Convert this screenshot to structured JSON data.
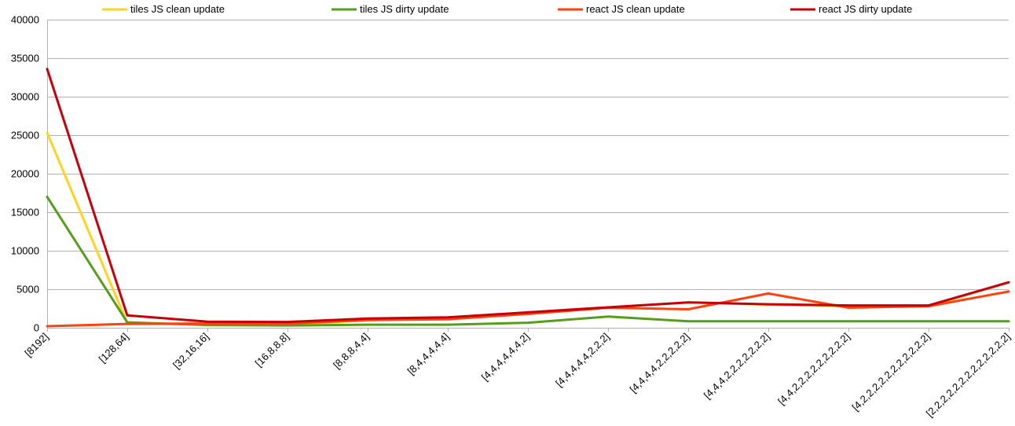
{
  "chart_data": {
    "type": "line",
    "categories": [
      "[8192]",
      "[128,64]",
      "[32,16,16]",
      "[16,8,8,8]",
      "[8,8,8,4,4]",
      "[8,4,4,4,4,4]",
      "[4,4,4,4,4,4,2]",
      "[4,4,4,4,4,2,2,2]",
      "[4,4,4,4,2,2,2,2,2]",
      "[4,4,4,2,2,2,2,2,2,2]",
      "[4,4,2,2,2,2,2,2,2,2,2]",
      "[4,2,2,2,2,2,2,2,2,2,2,2]",
      "[2,2,2,2,2,2,2,2,2,2,2,2,2]"
    ],
    "series": [
      {
        "name": "tiles JS clean update",
        "color": "#ffd320",
        "values": [
          25300,
          600,
          400,
          350,
          1000,
          1200,
          1800,
          2600,
          3300,
          3000,
          2800,
          2800,
          5900
        ]
      },
      {
        "name": "tiles JS dirty update",
        "color": "#579d1c",
        "values": [
          17000,
          700,
          350,
          300,
          400,
          400,
          650,
          1450,
          850,
          850,
          850,
          850,
          850
        ]
      },
      {
        "name": "react JS clean update",
        "color": "#ff420e",
        "values": [
          200,
          500,
          550,
          550,
          1000,
          1100,
          1800,
          2600,
          2400,
          4450,
          2600,
          2800,
          4700
        ]
      },
      {
        "name": "react JS dirty update",
        "color": "#c5000b",
        "values": [
          33600,
          1600,
          800,
          750,
          1200,
          1350,
          2000,
          2650,
          3300,
          3050,
          2900,
          2900,
          5900
        ]
      }
    ],
    "title": "",
    "xlabel": "",
    "ylabel": "",
    "ylim": [
      0,
      40000
    ],
    "yticks": [
      "0",
      "5000",
      "10000",
      "15000",
      "20000",
      "25000",
      "30000",
      "35000",
      "40000"
    ],
    "grid": true,
    "legend": "top"
  }
}
